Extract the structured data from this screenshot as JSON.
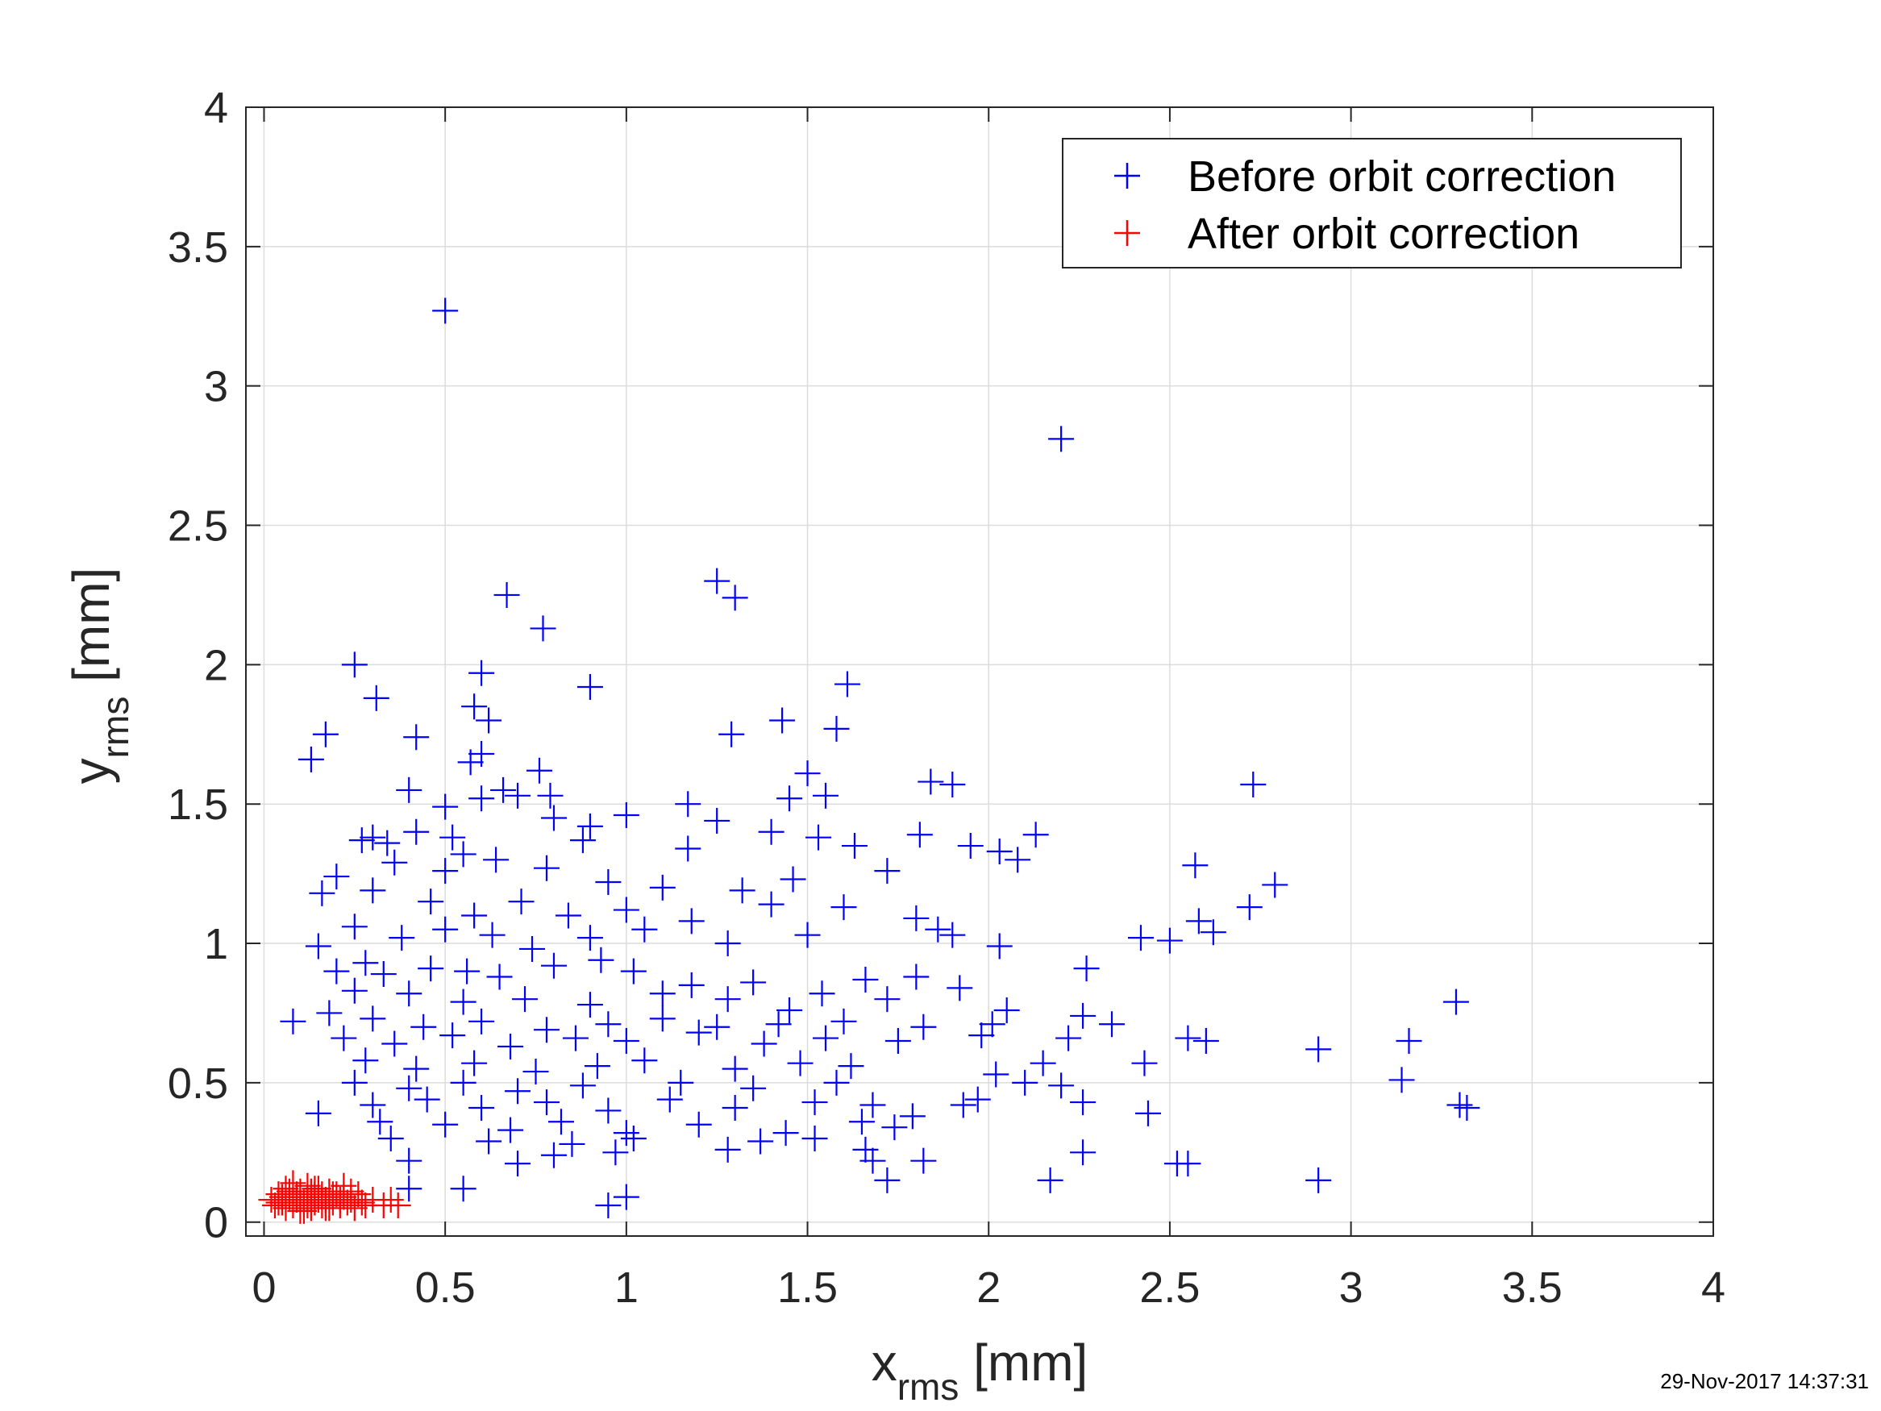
{
  "chart_data": {
    "type": "scatter",
    "xlabel": {
      "main": "x",
      "sub": "rms",
      "unit": " [mm]"
    },
    "ylabel": {
      "main": "y",
      "sub": "rms",
      "unit": " [mm]"
    },
    "xlim": [
      -0.05,
      4
    ],
    "ylim": [
      -0.05,
      4
    ],
    "xticks": [
      0,
      0.5,
      1,
      1.5,
      2,
      2.5,
      3,
      3.5,
      4
    ],
    "yticks": [
      0,
      0.5,
      1,
      1.5,
      2,
      2.5,
      3,
      3.5,
      4
    ],
    "xtick_labels": [
      "0",
      "0.5",
      "1",
      "1.5",
      "2",
      "2.5",
      "3",
      "3.5",
      "4"
    ],
    "ytick_labels": [
      "0",
      "0.5",
      "1",
      "1.5",
      "2",
      "2.5",
      "3",
      "3.5",
      "4"
    ],
    "grid": true,
    "legend_position": "top-right",
    "marker": "plus",
    "series": [
      {
        "name": "Before orbit correction",
        "color": "#0000ff",
        "points": [
          [
            0.5,
            3.27
          ],
          [
            2.2,
            2.81
          ],
          [
            0.67,
            2.25
          ],
          [
            1.25,
            2.3
          ],
          [
            1.3,
            2.24
          ],
          [
            0.77,
            2.13
          ],
          [
            0.25,
            2.0
          ],
          [
            0.31,
            1.88
          ],
          [
            0.6,
            1.97
          ],
          [
            0.9,
            1.92
          ],
          [
            1.61,
            1.93
          ],
          [
            0.58,
            1.85
          ],
          [
            0.62,
            1.8
          ],
          [
            0.17,
            1.75
          ],
          [
            0.42,
            1.74
          ],
          [
            1.29,
            1.75
          ],
          [
            1.43,
            1.8
          ],
          [
            1.58,
            1.77
          ],
          [
            0.13,
            1.66
          ],
          [
            0.57,
            1.65
          ],
          [
            0.6,
            1.68
          ],
          [
            0.76,
            1.62
          ],
          [
            1.5,
            1.61
          ],
          [
            2.73,
            1.57
          ],
          [
            1.84,
            1.58
          ],
          [
            1.9,
            1.57
          ],
          [
            0.4,
            1.55
          ],
          [
            0.6,
            1.52
          ],
          [
            0.66,
            1.55
          ],
          [
            0.7,
            1.53
          ],
          [
            0.79,
            1.53
          ],
          [
            0.5,
            1.49
          ],
          [
            1.17,
            1.5
          ],
          [
            1.45,
            1.52
          ],
          [
            1.55,
            1.53
          ],
          [
            0.3,
            1.38
          ],
          [
            0.42,
            1.4
          ],
          [
            0.55,
            1.32
          ],
          [
            0.8,
            1.45
          ],
          [
            0.9,
            1.42
          ],
          [
            1.0,
            1.46
          ],
          [
            1.25,
            1.44
          ],
          [
            1.4,
            1.4
          ],
          [
            1.53,
            1.38
          ],
          [
            1.81,
            1.39
          ],
          [
            2.13,
            1.39
          ],
          [
            0.27,
            1.37
          ],
          [
            0.34,
            1.36
          ],
          [
            0.52,
            1.38
          ],
          [
            0.64,
            1.3
          ],
          [
            0.88,
            1.37
          ],
          [
            1.17,
            1.34
          ],
          [
            1.63,
            1.35
          ],
          [
            1.95,
            1.35
          ],
          [
            2.03,
            1.33
          ],
          [
            2.08,
            1.3
          ],
          [
            2.57,
            1.28
          ],
          [
            1.72,
            1.26
          ],
          [
            0.2,
            1.24
          ],
          [
            0.36,
            1.29
          ],
          [
            0.5,
            1.26
          ],
          [
            0.78,
            1.27
          ],
          [
            0.95,
            1.22
          ],
          [
            1.1,
            1.2
          ],
          [
            1.32,
            1.19
          ],
          [
            1.46,
            1.23
          ],
          [
            2.79,
            1.21
          ],
          [
            0.16,
            1.18
          ],
          [
            0.3,
            1.19
          ],
          [
            0.46,
            1.15
          ],
          [
            0.58,
            1.1
          ],
          [
            0.71,
            1.15
          ],
          [
            0.84,
            1.1
          ],
          [
            1.0,
            1.12
          ],
          [
            1.18,
            1.08
          ],
          [
            1.4,
            1.14
          ],
          [
            1.6,
            1.13
          ],
          [
            1.8,
            1.09
          ],
          [
            2.58,
            1.08
          ],
          [
            2.72,
            1.13
          ],
          [
            0.15,
            0.99
          ],
          [
            0.25,
            1.06
          ],
          [
            0.38,
            1.02
          ],
          [
            0.5,
            1.05
          ],
          [
            0.63,
            1.03
          ],
          [
            0.74,
            0.98
          ],
          [
            0.9,
            1.02
          ],
          [
            1.05,
            1.05
          ],
          [
            1.28,
            1.0
          ],
          [
            1.5,
            1.03
          ],
          [
            1.86,
            1.05
          ],
          [
            1.9,
            1.03
          ],
          [
            2.03,
            0.99
          ],
          [
            2.42,
            1.02
          ],
          [
            2.5,
            1.01
          ],
          [
            2.62,
            1.04
          ],
          [
            0.2,
            0.9
          ],
          [
            0.28,
            0.93
          ],
          [
            0.33,
            0.89
          ],
          [
            0.46,
            0.91
          ],
          [
            0.56,
            0.9
          ],
          [
            0.65,
            0.88
          ],
          [
            0.8,
            0.92
          ],
          [
            0.93,
            0.94
          ],
          [
            1.02,
            0.9
          ],
          [
            1.18,
            0.85
          ],
          [
            1.35,
            0.86
          ],
          [
            1.54,
            0.82
          ],
          [
            1.66,
            0.87
          ],
          [
            1.8,
            0.88
          ],
          [
            1.92,
            0.84
          ],
          [
            2.27,
            0.91
          ],
          [
            3.29,
            0.79
          ],
          [
            0.25,
            0.83
          ],
          [
            0.4,
            0.82
          ],
          [
            0.55,
            0.79
          ],
          [
            0.72,
            0.8
          ],
          [
            0.9,
            0.78
          ],
          [
            1.1,
            0.82
          ],
          [
            1.28,
            0.8
          ],
          [
            1.45,
            0.76
          ],
          [
            1.72,
            0.8
          ],
          [
            2.05,
            0.76
          ],
          [
            0.08,
            0.72
          ],
          [
            0.18,
            0.75
          ],
          [
            0.3,
            0.73
          ],
          [
            0.44,
            0.7
          ],
          [
            0.6,
            0.72
          ],
          [
            0.78,
            0.69
          ],
          [
            0.95,
            0.71
          ],
          [
            1.1,
            0.73
          ],
          [
            1.25,
            0.7
          ],
          [
            1.42,
            0.71
          ],
          [
            1.6,
            0.72
          ],
          [
            1.82,
            0.7
          ],
          [
            2.01,
            0.71
          ],
          [
            2.26,
            0.74
          ],
          [
            2.34,
            0.71
          ],
          [
            0.22,
            0.66
          ],
          [
            0.36,
            0.64
          ],
          [
            0.52,
            0.67
          ],
          [
            0.68,
            0.63
          ],
          [
            0.86,
            0.66
          ],
          [
            1.0,
            0.65
          ],
          [
            1.2,
            0.68
          ],
          [
            1.38,
            0.64
          ],
          [
            1.55,
            0.66
          ],
          [
            1.75,
            0.65
          ],
          [
            1.98,
            0.67
          ],
          [
            2.22,
            0.66
          ],
          [
            2.55,
            0.66
          ],
          [
            2.6,
            0.65
          ],
          [
            2.91,
            0.62
          ],
          [
            3.16,
            0.65
          ],
          [
            0.28,
            0.58
          ],
          [
            0.42,
            0.55
          ],
          [
            0.58,
            0.57
          ],
          [
            0.75,
            0.54
          ],
          [
            0.92,
            0.56
          ],
          [
            1.05,
            0.58
          ],
          [
            1.3,
            0.55
          ],
          [
            1.48,
            0.57
          ],
          [
            1.62,
            0.56
          ],
          [
            2.15,
            0.57
          ],
          [
            2.43,
            0.57
          ],
          [
            0.25,
            0.5
          ],
          [
            0.4,
            0.48
          ],
          [
            0.55,
            0.5
          ],
          [
            0.7,
            0.47
          ],
          [
            0.88,
            0.49
          ],
          [
            1.15,
            0.5
          ],
          [
            1.35,
            0.48
          ],
          [
            1.58,
            0.5
          ],
          [
            2.02,
            0.53
          ],
          [
            2.1,
            0.5
          ],
          [
            2.2,
            0.49
          ],
          [
            3.14,
            0.51
          ],
          [
            0.3,
            0.42
          ],
          [
            0.45,
            0.44
          ],
          [
            0.6,
            0.41
          ],
          [
            0.78,
            0.43
          ],
          [
            0.95,
            0.4
          ],
          [
            1.12,
            0.44
          ],
          [
            1.3,
            0.41
          ],
          [
            1.52,
            0.43
          ],
          [
            1.68,
            0.42
          ],
          [
            1.93,
            0.42
          ],
          [
            1.97,
            0.44
          ],
          [
            2.26,
            0.43
          ],
          [
            2.44,
            0.39
          ],
          [
            3.3,
            0.42
          ],
          [
            3.32,
            0.41
          ],
          [
            0.15,
            0.39
          ],
          [
            0.32,
            0.36
          ],
          [
            0.5,
            0.35
          ],
          [
            0.68,
            0.33
          ],
          [
            0.82,
            0.36
          ],
          [
            1.0,
            0.32
          ],
          [
            1.2,
            0.35
          ],
          [
            1.44,
            0.32
          ],
          [
            1.65,
            0.36
          ],
          [
            1.74,
            0.34
          ],
          [
            1.79,
            0.38
          ],
          [
            0.35,
            0.3
          ],
          [
            0.62,
            0.29
          ],
          [
            0.85,
            0.28
          ],
          [
            1.02,
            0.3
          ],
          [
            1.28,
            0.26
          ],
          [
            1.37,
            0.29
          ],
          [
            1.52,
            0.3
          ],
          [
            1.66,
            0.26
          ],
          [
            0.4,
            0.22
          ],
          [
            0.7,
            0.21
          ],
          [
            0.8,
            0.24
          ],
          [
            0.97,
            0.25
          ],
          [
            1.68,
            0.22
          ],
          [
            1.82,
            0.22
          ],
          [
            2.26,
            0.25
          ],
          [
            2.52,
            0.21
          ],
          [
            2.55,
            0.21
          ],
          [
            0.55,
            0.12
          ],
          [
            1.72,
            0.15
          ],
          [
            2.17,
            0.15
          ],
          [
            2.91,
            0.15
          ],
          [
            0.4,
            0.12
          ],
          [
            0.95,
            0.06
          ],
          [
            1.0,
            0.09
          ]
        ]
      },
      {
        "name": "After orbit correction",
        "color": "#ff0000",
        "points": [
          [
            0.02,
            0.08
          ],
          [
            0.03,
            0.06
          ],
          [
            0.04,
            0.1
          ],
          [
            0.05,
            0.07
          ],
          [
            0.06,
            0.05
          ],
          [
            0.06,
            0.12
          ],
          [
            0.07,
            0.09
          ],
          [
            0.08,
            0.06
          ],
          [
            0.08,
            0.14
          ],
          [
            0.09,
            0.08
          ],
          [
            0.1,
            0.04
          ],
          [
            0.1,
            0.11
          ],
          [
            0.11,
            0.07
          ],
          [
            0.12,
            0.09
          ],
          [
            0.12,
            0.13
          ],
          [
            0.13,
            0.05
          ],
          [
            0.14,
            0.1
          ],
          [
            0.14,
            0.07
          ],
          [
            0.15,
            0.12
          ],
          [
            0.16,
            0.06
          ],
          [
            0.16,
            0.09
          ],
          [
            0.17,
            0.08
          ],
          [
            0.18,
            0.11
          ],
          [
            0.18,
            0.05
          ],
          [
            0.19,
            0.07
          ],
          [
            0.2,
            0.1
          ],
          [
            0.21,
            0.06
          ],
          [
            0.22,
            0.09
          ],
          [
            0.22,
            0.13
          ],
          [
            0.23,
            0.07
          ],
          [
            0.24,
            0.08
          ],
          [
            0.25,
            0.05
          ],
          [
            0.26,
            0.1
          ],
          [
            0.27,
            0.07
          ],
          [
            0.28,
            0.06
          ],
          [
            0.3,
            0.08
          ],
          [
            0.33,
            0.06
          ],
          [
            0.35,
            0.08
          ],
          [
            0.37,
            0.06
          ],
          [
            0.05,
            0.09
          ],
          [
            0.09,
            0.1
          ],
          [
            0.11,
            0.04
          ],
          [
            0.13,
            0.11
          ],
          [
            0.15,
            0.08
          ],
          [
            0.17,
            0.05
          ],
          [
            0.19,
            0.1
          ],
          [
            0.21,
            0.08
          ],
          [
            0.24,
            0.11
          ],
          [
            0.04,
            0.07
          ],
          [
            0.07,
            0.11
          ],
          [
            0.1,
            0.08
          ],
          [
            0.12,
            0.06
          ],
          [
            0.14,
            0.12
          ],
          [
            0.16,
            0.1
          ]
        ]
      }
    ]
  },
  "timestamp": "29-Nov-2017 14:37:31"
}
